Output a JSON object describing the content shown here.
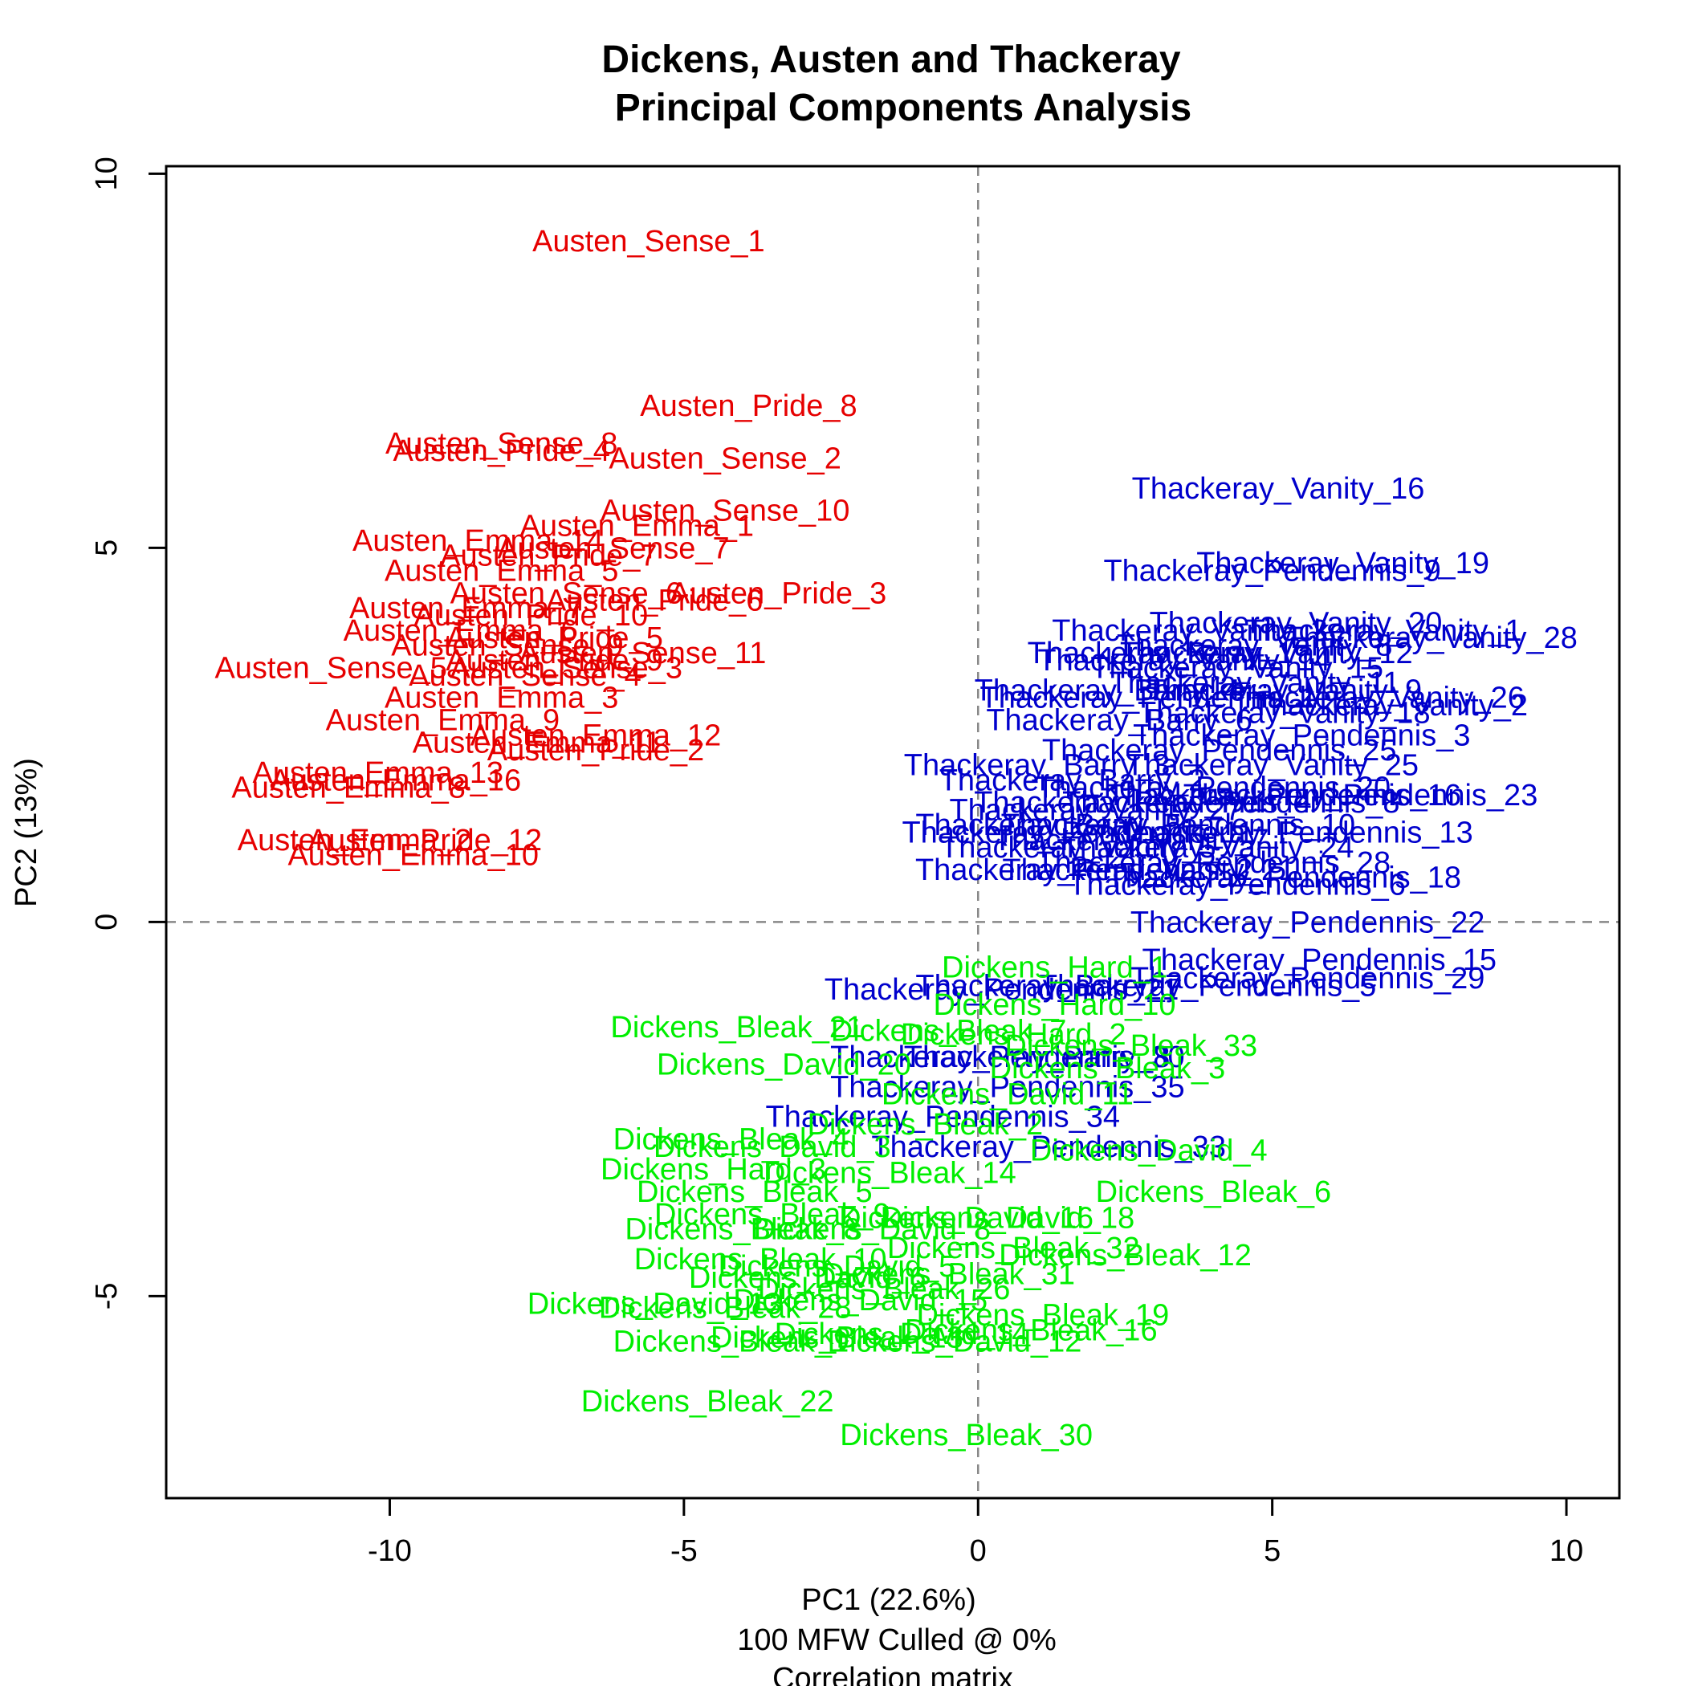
{
  "chart_data": {
    "type": "scatter",
    "title": [
      "Dickens, Austen and Thackeray",
      "Principal Components Analysis"
    ],
    "xlabel": "PC1 (22.6%)",
    "subtitle": [
      "100 MFW  Culled @ 0%",
      "Correlation matrix"
    ],
    "ylabel": "PC2 (13%)",
    "xlim": [
      -13.8,
      10.9
    ],
    "ylim": [
      -7.7,
      10.1
    ],
    "xticks": [
      -10,
      -5,
      0,
      5,
      10
    ],
    "yticks": [
      -5,
      0,
      5,
      10
    ],
    "reference_lines": {
      "x": 0,
      "y": 0,
      "style": "dashed"
    },
    "grid": false,
    "series": [
      {
        "name": "Austen",
        "color": "#e60000",
        "points": [
          {
            "label": "Austen_Sense_1",
            "x": -5.6,
            "y": 9.1
          },
          {
            "label": "Austen_Pride_8",
            "x": -3.9,
            "y": 6.9
          },
          {
            "label": "Austen_Sense_8",
            "x": -8.1,
            "y": 6.4
          },
          {
            "label": "Austen_Pride_4",
            "x": -8.1,
            "y": 6.3
          },
          {
            "label": "Austen_Sense_2",
            "x": -4.3,
            "y": 6.2
          },
          {
            "label": "Austen_Sense_10",
            "x": -4.3,
            "y": 5.5
          },
          {
            "label": "Austen_Emma_1",
            "x": -5.8,
            "y": 5.3
          },
          {
            "label": "Austen_Emma_14",
            "x": -8.5,
            "y": 5.1
          },
          {
            "label": "Austen_Sense_7",
            "x": -6.2,
            "y": 5.0
          },
          {
            "label": "Austen_Pride_7",
            "x": -7.3,
            "y": 4.9
          },
          {
            "label": "Austen_Emma_5",
            "x": -8.1,
            "y": 4.7
          },
          {
            "label": "Austen_Sense_6",
            "x": -7.0,
            "y": 4.4
          },
          {
            "label": "Austen_Pride_3",
            "x": -3.4,
            "y": 4.4
          },
          {
            "label": "Austen_Pride_6",
            "x": -5.5,
            "y": 4.3
          },
          {
            "label": "Austen_Emma_7",
            "x": -8.7,
            "y": 4.2
          },
          {
            "label": "Austen_Pride_10",
            "x": -7.6,
            "y": 4.1
          },
          {
            "label": "Austen_Emma_6",
            "x": -8.8,
            "y": 3.9
          },
          {
            "label": "Austen_Pride_5",
            "x": -7.2,
            "y": 3.8
          },
          {
            "label": "Austen_Sense_9",
            "x": -8.0,
            "y": 3.7
          },
          {
            "label": "Austen_Sense_11",
            "x": -5.7,
            "y": 3.6
          },
          {
            "label": "Austen_Sense_5",
            "x": -11.0,
            "y": 3.4
          },
          {
            "label": "Austen_Sense_3",
            "x": -7.0,
            "y": 3.4
          },
          {
            "label": "Austen_Pride_9",
            "x": -7.2,
            "y": 3.5
          },
          {
            "label": "Austen_Sense_4",
            "x": -7.7,
            "y": 3.3
          },
          {
            "label": "Austen_Emma_3",
            "x": -8.1,
            "y": 3.0
          },
          {
            "label": "Austen_Emma_9",
            "x": -9.1,
            "y": 2.7
          },
          {
            "label": "Austen_Emma_11",
            "x": -7.5,
            "y": 2.4
          },
          {
            "label": "Austen_Emma_12",
            "x": -6.5,
            "y": 2.5
          },
          {
            "label": "Austen_Pride_2",
            "x": -6.5,
            "y": 2.3
          },
          {
            "label": "Austen_Emma_13",
            "x": -10.2,
            "y": 2.0
          },
          {
            "label": "Austen_Emma_8",
            "x": -10.7,
            "y": 1.8
          },
          {
            "label": "Austen_Emma_16",
            "x": -9.9,
            "y": 1.9
          },
          {
            "label": "Austen_Emma_2",
            "x": -10.6,
            "y": 1.1
          },
          {
            "label": "Austen_Pride_12",
            "x": -9.4,
            "y": 1.1
          },
          {
            "label": "Austen_Emma_10",
            "x": -9.6,
            "y": 0.9
          }
        ]
      },
      {
        "name": "Thackeray",
        "color": "#0000cc",
        "points": [
          {
            "label": "Thackeray_Vanity_16",
            "x": 5.1,
            "y": 5.8
          },
          {
            "label": "Thackeray_Vanity_19",
            "x": 6.2,
            "y": 4.8
          },
          {
            "label": "Thackeray_Pendennis_9",
            "x": 5.0,
            "y": 4.7
          },
          {
            "label": "Thackeray_Vanity_20",
            "x": 5.4,
            "y": 4.0
          },
          {
            "label": "Thackeray_Vanity_1",
            "x": 6.9,
            "y": 3.9
          },
          {
            "label": "Thackeray_Vanity_28",
            "x": 7.7,
            "y": 3.8
          },
          {
            "label": "Thackeray_Vanity_3",
            "x": 3.6,
            "y": 3.9
          },
          {
            "label": "Thackeray_Vanity_8",
            "x": 4.7,
            "y": 3.7
          },
          {
            "label": "Thackeray_Barry_1",
            "x": 3.1,
            "y": 3.6
          },
          {
            "label": "Thackeray_Vanity_12",
            "x": 4.9,
            "y": 3.6
          },
          {
            "label": "Thackeray_Vanity_14",
            "x": 3.5,
            "y": 3.5
          },
          {
            "label": "Thackeray_Vanity_15",
            "x": 4.4,
            "y": 3.4
          },
          {
            "label": "Thackeray_Vanity_11",
            "x": 4.7,
            "y": 3.2
          },
          {
            "label": "Thackeray_Barry_4",
            "x": 2.2,
            "y": 3.1
          },
          {
            "label": "Thackeray_Pendennis_1",
            "x": 2.9,
            "y": 3.0
          },
          {
            "label": "Thackeray_Vanity_9",
            "x": 5.2,
            "y": 3.1
          },
          {
            "label": "Thackeray_Vanity_26",
            "x": 6.8,
            "y": 3.0
          },
          {
            "label": "Thackeray_Vanity_2",
            "x": 7.0,
            "y": 2.9
          },
          {
            "label": "Thackeray_Vanity_18",
            "x": 5.2,
            "y": 2.8
          },
          {
            "label": "Thackeray_Barry_6",
            "x": 2.4,
            "y": 2.7
          },
          {
            "label": "Thackeray_Pendennis_3",
            "x": 5.5,
            "y": 2.5
          },
          {
            "label": "Thackeray_Pendennis_25",
            "x": 4.1,
            "y": 2.3
          },
          {
            "label": "Thackeray_Vanity_25",
            "x": 5.0,
            "y": 2.1
          },
          {
            "label": "Thackeray_Barry_3",
            "x": 1.0,
            "y": 2.1
          },
          {
            "label": "Thackeray_Barry_2",
            "x": 1.6,
            "y": 1.9
          },
          {
            "label": "Thackeray_Pendennis_20",
            "x": 4.0,
            "y": 1.8
          },
          {
            "label": "Thackeray_Pendennis_23",
            "x": 6.5,
            "y": 1.7
          },
          {
            "label": "Thackeray_Pendennis_16",
            "x": 5.2,
            "y": 1.7
          },
          {
            "label": "Thackeray_Pendennis_8",
            "x": 4.3,
            "y": 1.6
          },
          {
            "label": "Thackeray_Pendennis_4",
            "x": 2.8,
            "y": 1.6
          },
          {
            "label": "Thackeray_Vanity_27",
            "x": 2.0,
            "y": 1.5
          },
          {
            "label": "Thackeray_Barry_5",
            "x": 1.2,
            "y": 1.3
          },
          {
            "label": "Thackeray_Pendennis_11",
            "x": 1.7,
            "y": 1.2
          },
          {
            "label": "Thackeray_Pendennis_10",
            "x": 3.4,
            "y": 1.3
          },
          {
            "label": "Thackeray_Pendennis_13",
            "x": 5.4,
            "y": 1.2
          },
          {
            "label": "Thackeray_Vanity_7",
            "x": 2.6,
            "y": 1.1
          },
          {
            "label": "Thackeray_Vanity_24",
            "x": 3.9,
            "y": 1.0
          },
          {
            "label": "Thackeray_Vanity_5",
            "x": 1.7,
            "y": 1.0
          },
          {
            "label": "Thackeray_Pendennis_28",
            "x": 4.0,
            "y": 0.8
          },
          {
            "label": "Thackeray_Pendennis_2",
            "x": 1.8,
            "y": 0.7
          },
          {
            "label": "Thackeray_Vanity_21",
            "x": 2.9,
            "y": 0.7
          },
          {
            "label": "Thackeray_Pendennis_18",
            "x": 5.2,
            "y": 0.6
          },
          {
            "label": "Thackeray_Pendennis_6",
            "x": 4.4,
            "y": 0.5
          },
          {
            "label": "Thackeray_Pendennis_22",
            "x": 5.6,
            "y": 0.0
          },
          {
            "label": "Thackeray_Pendennis_15",
            "x": 5.8,
            "y": -0.5
          },
          {
            "label": "Thackeray_Pendennis_29",
            "x": 5.6,
            "y": -0.75
          },
          {
            "label": "Thackeray_Pendennis_5",
            "x": 3.9,
            "y": -0.85
          },
          {
            "label": "Thackeray_Pendennis_21",
            "x": 0.4,
            "y": -0.9
          },
          {
            "label": "Thackeray_Barry_7",
            "x": 1.2,
            "y": -0.85
          },
          {
            "label": "Thackeray_Pendennis_30",
            "x": 0.5,
            "y": -1.8
          },
          {
            "label": "Thackeray_Barry_8",
            "x": 1.0,
            "y": -1.8
          },
          {
            "label": "Thackeray_Pendennis_35",
            "x": 0.5,
            "y": -2.2
          },
          {
            "label": "Thackeray_Pendennis_34",
            "x": -0.6,
            "y": -2.6
          },
          {
            "label": "Thackeray_Pendennis_33",
            "x": 1.2,
            "y": -3.0
          }
        ]
      },
      {
        "name": "Dickens",
        "color": "#00ee00",
        "points": [
          {
            "label": "Dickens_Hard_1",
            "x": 1.3,
            "y": -0.6
          },
          {
            "label": "Dickens_Hard_10",
            "x": 1.3,
            "y": -1.1
          },
          {
            "label": "Dickens_Bleak_21",
            "x": -4.1,
            "y": -1.4
          },
          {
            "label": "Dickens_Bleak_7",
            "x": -0.5,
            "y": -1.45
          },
          {
            "label": "Dickens_Hard_2",
            "x": 0.6,
            "y": -1.5
          },
          {
            "label": "Dickens_Bleak_33",
            "x": 2.6,
            "y": -1.65
          },
          {
            "label": "Dickens_David_20",
            "x": -3.3,
            "y": -1.9
          },
          {
            "label": "Dickens_Bleak_3",
            "x": 2.2,
            "y": -1.95
          },
          {
            "label": "Dickens_David_11",
            "x": 0.5,
            "y": -2.3
          },
          {
            "label": "Dickens_Bleak_2",
            "x": -0.9,
            "y": -2.7
          },
          {
            "label": "Dickens_Bleak_4",
            "x": -4.2,
            "y": -2.9
          },
          {
            "label": "Dickens_David_3",
            "x": -3.5,
            "y": -3.0
          },
          {
            "label": "Dickens_David_4",
            "x": 2.9,
            "y": -3.05
          },
          {
            "label": "Dickens_Hard_3",
            "x": -4.5,
            "y": -3.3
          },
          {
            "label": "Dickens_Bleak_14",
            "x": -1.5,
            "y": -3.35
          },
          {
            "label": "Dickens_Bleak_5",
            "x": -3.8,
            "y": -3.6
          },
          {
            "label": "Dickens_Bleak_6",
            "x": 4.0,
            "y": -3.6
          },
          {
            "label": "Dickens_Bleak_9",
            "x": -3.5,
            "y": -3.9
          },
          {
            "label": "Dickens_David_18",
            "x": 0.5,
            "y": -3.95
          },
          {
            "label": "Dickens_David_16",
            "x": -0.2,
            "y": -3.95
          },
          {
            "label": "Dickens_Bleak_8",
            "x": -4.0,
            "y": -4.1
          },
          {
            "label": "Dickens_David_8",
            "x": -1.8,
            "y": -4.1
          },
          {
            "label": "Dickens_Bleak_32",
            "x": 0.6,
            "y": -4.35
          },
          {
            "label": "Dickens_Bleak_12",
            "x": 2.5,
            "y": -4.45
          },
          {
            "label": "Dickens_Bleak_10",
            "x": -3.7,
            "y": -4.5
          },
          {
            "label": "Dickens_David_5",
            "x": -2.4,
            "y": -4.6
          },
          {
            "label": "Dickens_Bleak_31",
            "x": -0.5,
            "y": -4.7
          },
          {
            "label": "Dickens_David_6",
            "x": -2.9,
            "y": -4.75
          },
          {
            "label": "Dickens_Bleak_26",
            "x": -1.6,
            "y": -4.9
          },
          {
            "label": "Dickens_David_13",
            "x": -5.5,
            "y": -5.1
          },
          {
            "label": "Dickens_Bleak_28",
            "x": -4.3,
            "y": -5.15
          },
          {
            "label": "Dickens_David_15",
            "x": -2.0,
            "y": -5.05
          },
          {
            "label": "Dickens_Bleak_19",
            "x": 1.1,
            "y": -5.25
          },
          {
            "label": "Dickens_Bleak_16",
            "x": 0.9,
            "y": -5.45
          },
          {
            "label": "Dickens_David_12",
            "x": -0.4,
            "y": -5.6
          },
          {
            "label": "Dickens_Bleak_13",
            "x": -2.4,
            "y": -5.55
          },
          {
            "label": "Dickens_David_14",
            "x": -1.3,
            "y": -5.5
          },
          {
            "label": "Dickens_Bleak_1",
            "x": -4.2,
            "y": -5.6
          },
          {
            "label": "Dickens_Bleak_22",
            "x": -4.6,
            "y": -6.4
          },
          {
            "label": "Dickens_Bleak_30",
            "x": -0.2,
            "y": -6.85
          }
        ]
      }
    ]
  }
}
